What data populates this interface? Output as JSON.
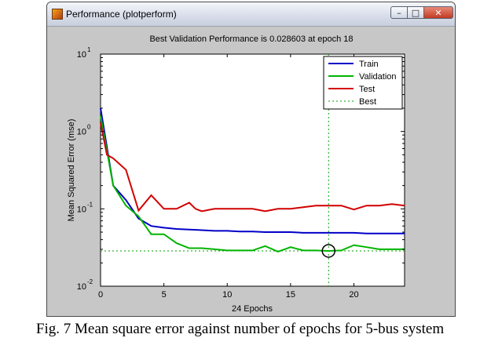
{
  "window": {
    "title": "Performance (plotperform)",
    "buttons": {
      "minimize": "–",
      "maximize": "□",
      "close": "✕"
    }
  },
  "chart_data": {
    "type": "line",
    "title": "Best Validation Performance is 0.028603 at epoch 18",
    "xlabel": "24 Epochs",
    "ylabel": "Mean Squared Error  (mse)",
    "xlim": [
      0,
      24
    ],
    "ylim": [
      0.01,
      10
    ],
    "yscale": "log",
    "x_ticks": [
      0,
      5,
      10,
      15,
      20
    ],
    "y_ticks": [
      {
        "value": 0.01,
        "base": "10",
        "exp": "-2"
      },
      {
        "value": 0.1,
        "base": "10",
        "exp": "-1"
      },
      {
        "value": 1,
        "base": "10",
        "exp": "0"
      },
      {
        "value": 10,
        "base": "10",
        "exp": "1"
      }
    ],
    "legend_position": "top-right",
    "series": [
      {
        "name": "Train",
        "color": "#0000c8",
        "x": [
          0,
          1,
          2,
          3,
          4,
          5,
          6,
          7,
          8,
          9,
          10,
          11,
          12,
          13,
          14,
          15,
          16,
          17,
          18,
          19,
          20,
          21,
          22,
          23,
          24
        ],
        "y": [
          2.0,
          0.2,
          0.13,
          0.075,
          0.06,
          0.057,
          0.055,
          0.054,
          0.053,
          0.052,
          0.052,
          0.051,
          0.051,
          0.05,
          0.05,
          0.05,
          0.049,
          0.049,
          0.049,
          0.049,
          0.049,
          0.048,
          0.048,
          0.048,
          0.048
        ]
      },
      {
        "name": "Validation",
        "color": "#00b400",
        "x": [
          0,
          1,
          2,
          3,
          4,
          5,
          6,
          7,
          8,
          9,
          10,
          11,
          12,
          13,
          14,
          15,
          16,
          17,
          18,
          19,
          20,
          21,
          22,
          23,
          24
        ],
        "y": [
          1.6,
          0.2,
          0.11,
          0.08,
          0.047,
          0.047,
          0.036,
          0.031,
          0.031,
          0.03,
          0.029,
          0.029,
          0.029,
          0.033,
          0.028,
          0.032,
          0.029,
          0.029,
          0.0286,
          0.029,
          0.034,
          0.032,
          0.03,
          0.03,
          0.03
        ]
      },
      {
        "name": "Test",
        "color": "#d20000",
        "x": [
          0,
          0.5,
          1,
          2,
          3,
          4,
          5,
          6,
          7,
          7.5,
          8,
          9,
          10,
          11,
          12,
          13,
          14,
          15,
          16,
          17,
          18,
          19,
          20,
          21,
          22,
          23,
          24
        ],
        "y": [
          1.3,
          0.5,
          0.45,
          0.32,
          0.095,
          0.15,
          0.1,
          0.1,
          0.12,
          0.1,
          0.093,
          0.1,
          0.1,
          0.1,
          0.1,
          0.093,
          0.1,
          0.1,
          0.105,
          0.11,
          0.11,
          0.11,
          0.098,
          0.11,
          0.11,
          0.115,
          0.11
        ]
      }
    ],
    "best": {
      "name": "Best",
      "epoch": 18,
      "value": 0.028603,
      "color": "#00a000"
    }
  },
  "caption": "Fig. 7 Mean square error against number of epochs for 5-bus system"
}
